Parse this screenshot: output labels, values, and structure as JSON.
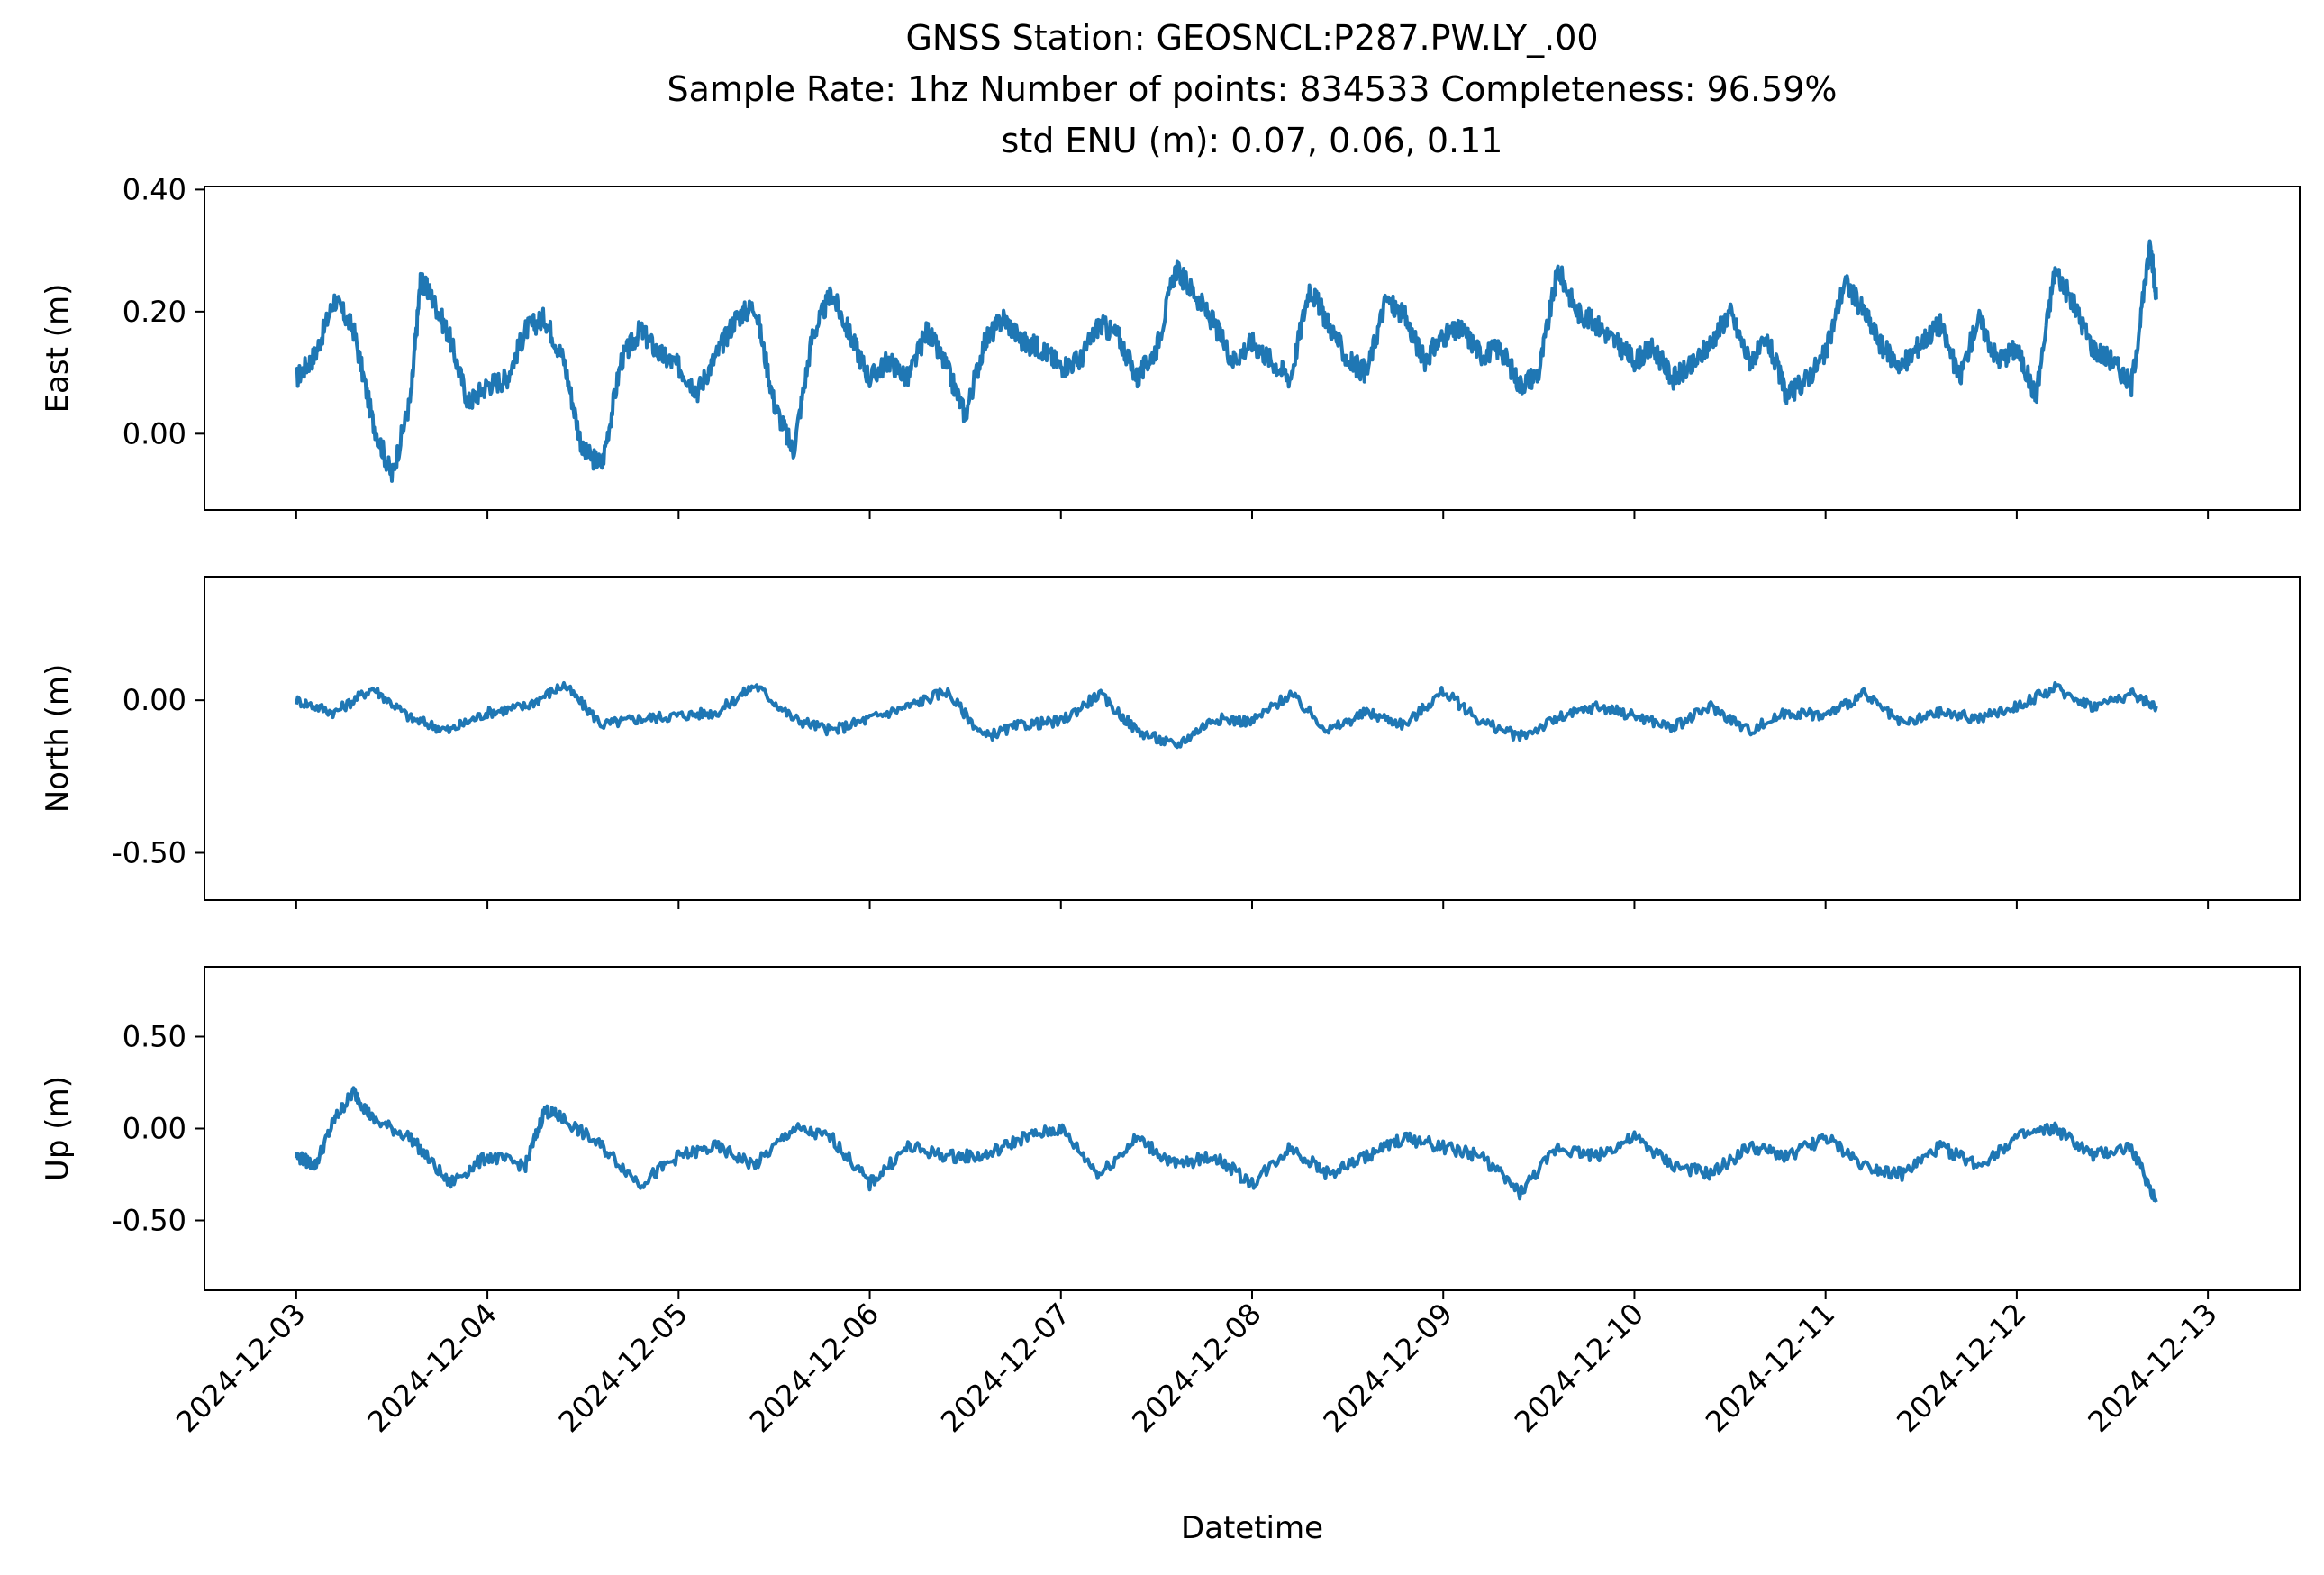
{
  "chart_data": {
    "type": "line",
    "title_lines": [
      "GNSS Station: GEOSNCL:P287.PW.LY_.00",
      "Sample Rate: 1hz   Number of points: 834533    Completeness:  96.59%",
      "std ENU (m):  0.07, 0.06, 0.11"
    ],
    "xlabel": "Datetime",
    "x_ticks": [
      "2024-12-03",
      "2024-12-04",
      "2024-12-05",
      "2024-12-06",
      "2024-12-07",
      "2024-12-08",
      "2024-12-09",
      "2024-12-10",
      "2024-12-11",
      "2024-12-12",
      "2024-12-13"
    ],
    "x_range_days": [
      -0.48,
      10.48
    ],
    "data_x_range_days": [
      0.0,
      9.73
    ],
    "line_color": "#1f77b4",
    "grid": false,
    "panels": [
      {
        "name": "east",
        "ylabel": "East (m)",
        "y_ticks": [
          0.4,
          0.2,
          0.0
        ],
        "y_tick_labels": [
          "0.40",
          "0.20",
          "0.00"
        ],
        "ylim": [
          -0.125,
          0.405
        ],
        "x": [
          0.0,
          0.1,
          0.2,
          0.3,
          0.4,
          0.5,
          0.6,
          0.65,
          0.7,
          0.8,
          0.9,
          1.0,
          1.1,
          1.2,
          1.3,
          1.4,
          1.5,
          1.6,
          1.7,
          1.8,
          1.9,
          2.0,
          2.1,
          2.2,
          2.3,
          2.4,
          2.5,
          2.6,
          2.7,
          2.8,
          2.9,
          3.0,
          3.1,
          3.2,
          3.3,
          3.4,
          3.5,
          3.6,
          3.7,
          3.8,
          3.9,
          4.0,
          4.1,
          4.2,
          4.3,
          4.4,
          4.5,
          4.6,
          4.7,
          4.8,
          4.9,
          5.0,
          5.1,
          5.2,
          5.3,
          5.4,
          5.5,
          5.6,
          5.7,
          5.8,
          5.9,
          6.0,
          6.1,
          6.2,
          6.3,
          6.4,
          6.5,
          6.6,
          6.7,
          6.8,
          6.9,
          7.0,
          7.1,
          7.2,
          7.3,
          7.4,
          7.5,
          7.6,
          7.7,
          7.8,
          7.9,
          8.0,
          8.1,
          8.2,
          8.3,
          8.4,
          8.5,
          8.6,
          8.7,
          8.8,
          8.9,
          9.0,
          9.1,
          9.2,
          9.3,
          9.4,
          9.5,
          9.6,
          9.7,
          9.73
        ],
        "y": [
          0.09,
          0.13,
          0.22,
          0.17,
          0.02,
          -0.07,
          0.06,
          0.25,
          0.23,
          0.16,
          0.05,
          0.08,
          0.09,
          0.17,
          0.19,
          0.12,
          -0.03,
          -0.05,
          0.12,
          0.17,
          0.13,
          0.11,
          0.07,
          0.13,
          0.19,
          0.21,
          0.05,
          -0.03,
          0.16,
          0.23,
          0.16,
          0.09,
          0.12,
          0.09,
          0.17,
          0.11,
          0.03,
          0.15,
          0.19,
          0.15,
          0.14,
          0.11,
          0.12,
          0.18,
          0.16,
          0.09,
          0.14,
          0.27,
          0.23,
          0.18,
          0.12,
          0.15,
          0.12,
          0.09,
          0.24,
          0.18,
          0.12,
          0.1,
          0.22,
          0.19,
          0.12,
          0.16,
          0.17,
          0.13,
          0.14,
          0.08,
          0.1,
          0.27,
          0.2,
          0.18,
          0.15,
          0.12,
          0.14,
          0.09,
          0.11,
          0.15,
          0.2,
          0.12,
          0.15,
          0.06,
          0.09,
          0.13,
          0.25,
          0.2,
          0.14,
          0.11,
          0.15,
          0.18,
          0.09,
          0.19,
          0.12,
          0.14,
          0.06,
          0.27,
          0.21,
          0.14,
          0.12,
          0.08,
          0.31,
          0.22
        ]
      },
      {
        "name": "north",
        "ylabel": "North (m)",
        "y_ticks": [
          0.0,
          -0.5
        ],
        "y_tick_labels": [
          "0.00",
          "-0.50"
        ],
        "ylim": [
          -0.655,
          0.405
        ],
        "x": [
          0.0,
          0.2,
          0.4,
          0.6,
          0.8,
          1.0,
          1.2,
          1.4,
          1.6,
          1.8,
          2.0,
          2.2,
          2.4,
          2.6,
          2.8,
          3.0,
          3.2,
          3.4,
          3.6,
          3.8,
          4.0,
          4.2,
          4.4,
          4.6,
          4.8,
          5.0,
          5.2,
          5.4,
          5.6,
          5.8,
          6.0,
          6.2,
          6.4,
          6.6,
          6.8,
          7.0,
          7.2,
          7.4,
          7.6,
          7.8,
          8.0,
          8.2,
          8.4,
          8.6,
          8.8,
          9.0,
          9.2,
          9.4,
          9.6,
          9.73
        ],
        "y": [
          0.0,
          -0.04,
          0.04,
          -0.06,
          -0.1,
          -0.04,
          -0.02,
          0.05,
          -0.08,
          -0.06,
          -0.05,
          -0.04,
          0.05,
          -0.06,
          -0.1,
          -0.06,
          -0.02,
          0.03,
          -0.12,
          -0.08,
          -0.07,
          0.02,
          -0.1,
          -0.15,
          -0.06,
          -0.07,
          0.02,
          -0.1,
          -0.04,
          -0.08,
          0.03,
          -0.07,
          -0.12,
          -0.06,
          -0.02,
          -0.05,
          -0.09,
          -0.02,
          -0.1,
          -0.04,
          -0.05,
          0.02,
          -0.08,
          -0.04,
          -0.06,
          -0.02,
          0.04,
          -0.02,
          0.02,
          -0.02
        ]
      },
      {
        "name": "up",
        "ylabel": "Up (m)",
        "y_ticks": [
          0.5,
          0.0,
          -0.5
        ],
        "y_tick_labels": [
          "0.50",
          "0.00",
          "-0.50"
        ],
        "ylim": [
          -0.88,
          0.88
        ],
        "x": [
          0.0,
          0.1,
          0.2,
          0.3,
          0.4,
          0.6,
          0.8,
          1.0,
          1.2,
          1.3,
          1.4,
          1.6,
          1.8,
          2.0,
          2.2,
          2.4,
          2.6,
          2.8,
          3.0,
          3.2,
          3.4,
          3.6,
          3.8,
          4.0,
          4.2,
          4.4,
          4.6,
          4.8,
          5.0,
          5.2,
          5.4,
          5.6,
          5.8,
          6.0,
          6.2,
          6.4,
          6.6,
          6.8,
          7.0,
          7.2,
          7.4,
          7.6,
          7.8,
          8.0,
          8.2,
          8.4,
          8.6,
          8.8,
          9.0,
          9.2,
          9.4,
          9.6,
          9.73
        ],
        "y": [
          -0.15,
          -0.2,
          0.05,
          0.2,
          0.05,
          -0.05,
          -0.3,
          -0.15,
          -0.2,
          0.1,
          0.05,
          -0.1,
          -0.3,
          -0.15,
          -0.1,
          -0.2,
          0.0,
          -0.05,
          -0.3,
          -0.1,
          -0.15,
          -0.15,
          -0.05,
          0.0,
          -0.25,
          -0.05,
          -0.2,
          -0.15,
          -0.3,
          -0.1,
          -0.25,
          -0.15,
          -0.05,
          -0.1,
          -0.15,
          -0.35,
          -0.1,
          -0.15,
          -0.05,
          -0.2,
          -0.25,
          -0.1,
          -0.15,
          -0.05,
          -0.2,
          -0.25,
          -0.1,
          -0.2,
          -0.05,
          0.0,
          -0.15,
          -0.1,
          -0.4
        ]
      }
    ]
  }
}
